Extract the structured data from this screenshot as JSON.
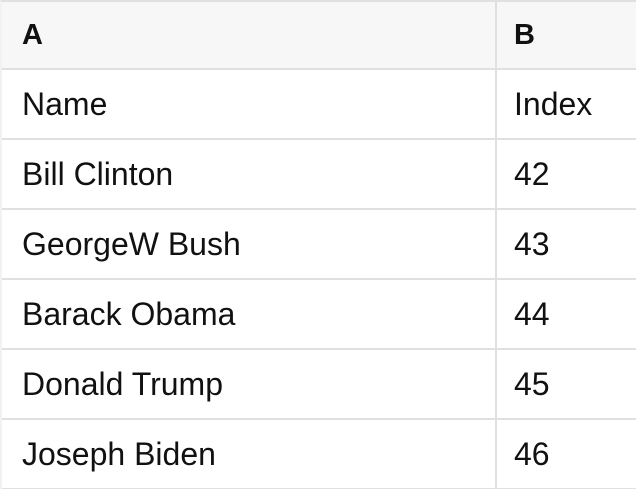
{
  "sheet": {
    "column_letters": [
      "A",
      "B"
    ],
    "field_row": [
      "Name",
      "Index"
    ],
    "rows": [
      [
        "Bill Clinton",
        "42"
      ],
      [
        "GeorgeW Bush",
        "43"
      ],
      [
        "Barack Obama",
        "44"
      ],
      [
        "Donald Trump",
        "45"
      ],
      [
        "Joseph Biden",
        "46"
      ]
    ]
  },
  "colors": {
    "header_bg": "#f7f7f7",
    "cell_bg": "#ffffff",
    "border": "#e0e0e0",
    "text": "#111111"
  }
}
